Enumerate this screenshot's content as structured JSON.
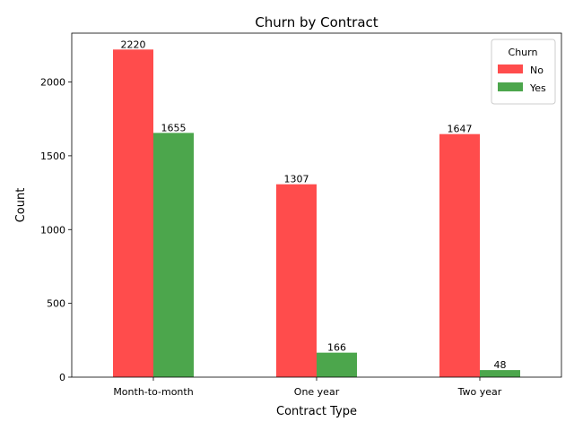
{
  "chart_data": {
    "type": "bar",
    "title": "Churn by Contract",
    "xlabel": "Contract Type",
    "ylabel": "Count",
    "categories": [
      "Month-to-month",
      "One year",
      "Two year"
    ],
    "series": [
      {
        "name": "No",
        "color": "#ff4c4c",
        "values": [
          2220,
          1307,
          1647
        ]
      },
      {
        "name": "Yes",
        "color": "#4ca64c",
        "values": [
          1655,
          166,
          48
        ]
      }
    ],
    "ylim": [
      0,
      2331
    ],
    "yticks": [
      0,
      500,
      1000,
      1500,
      2000
    ],
    "grid": false,
    "legend": {
      "title": "Churn",
      "placement": "top-right"
    }
  }
}
